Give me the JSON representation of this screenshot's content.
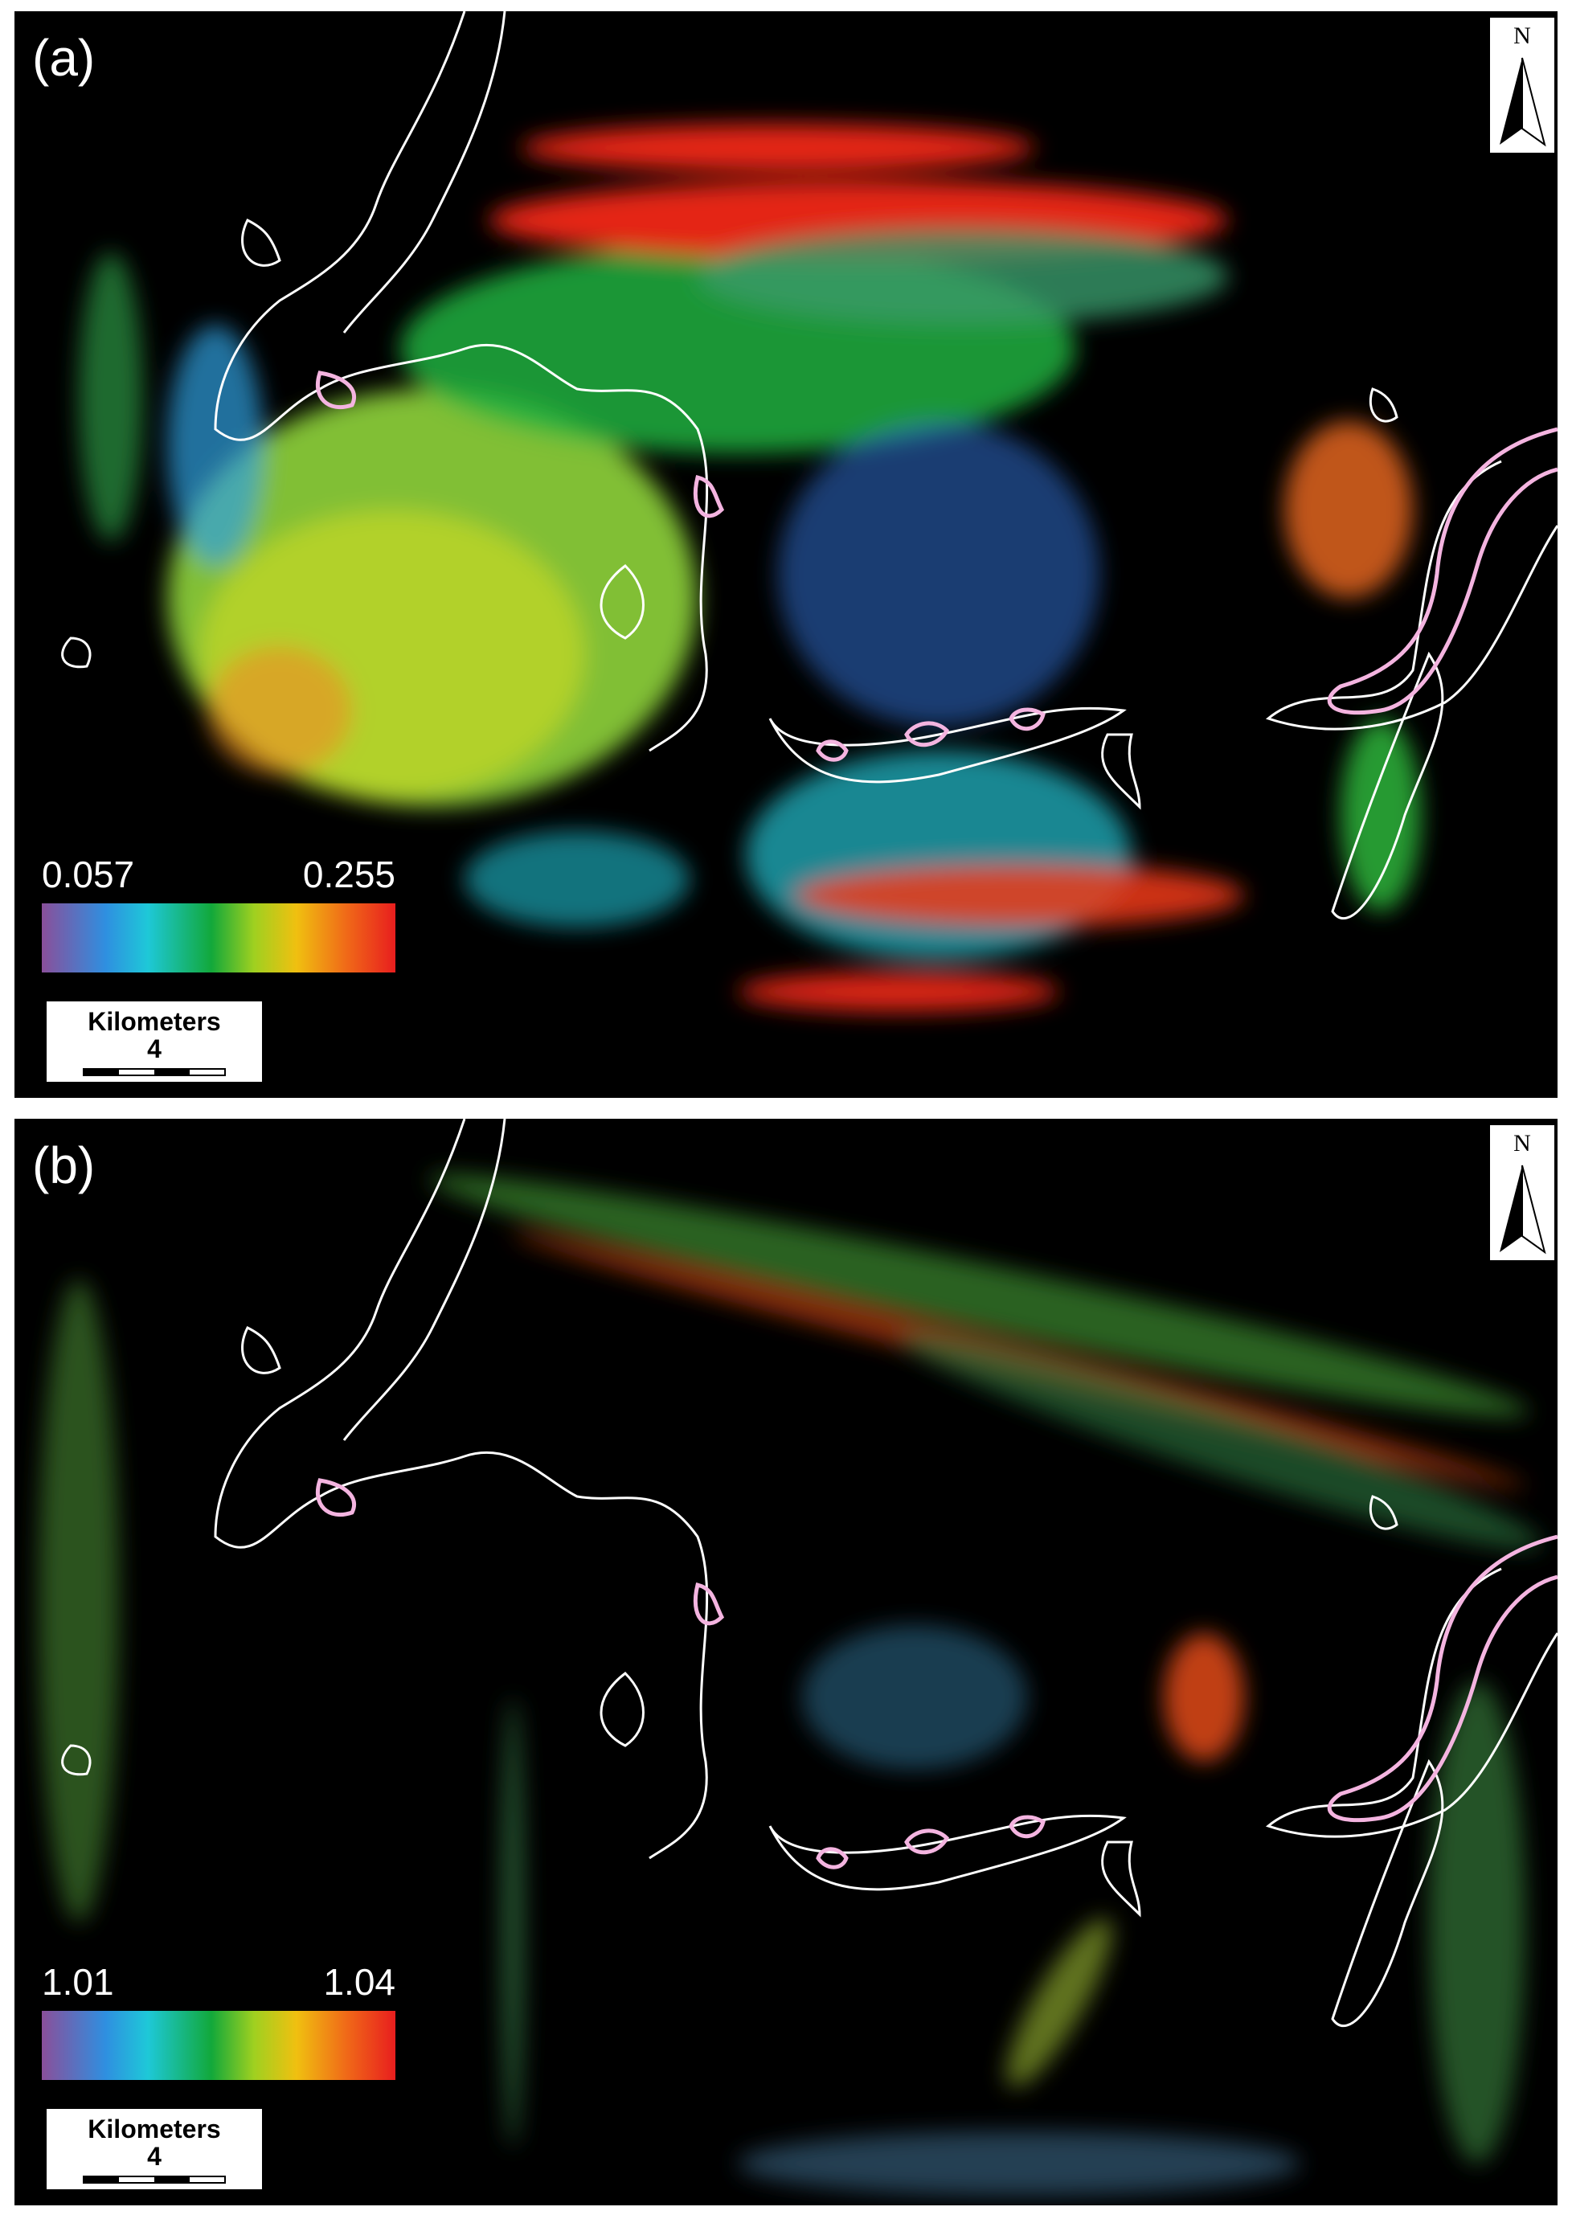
{
  "panels": [
    {
      "label": "(a)",
      "north": "N",
      "legend": {
        "min": "0.057",
        "max": "0.255"
      },
      "scale_bar": {
        "unit": "Kilometers",
        "distance": "4"
      }
    },
    {
      "label": "(b)",
      "north": "N",
      "legend": {
        "min": "1.01",
        "max": "1.04"
      },
      "scale_bar": {
        "unit": "Kilometers",
        "distance": "4"
      }
    }
  ]
}
